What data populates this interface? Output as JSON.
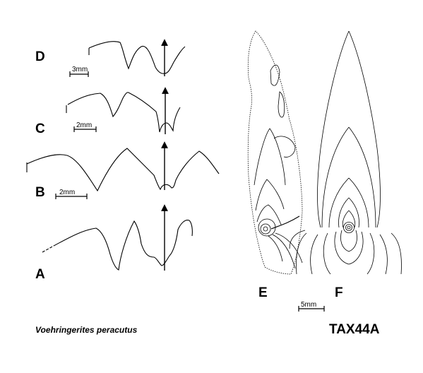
{
  "figure": {
    "species": "Voehringerites peracutus",
    "code": "TAX44A"
  },
  "panels": {
    "A": {
      "label": "A"
    },
    "B": {
      "label": "B",
      "scale": "2mm"
    },
    "C": {
      "label": "C",
      "scale": "2mm"
    },
    "D": {
      "label": "D",
      "scale": "3mm"
    },
    "E": {
      "label": "E",
      "scale": "5mm"
    },
    "F": {
      "label": "F"
    }
  }
}
